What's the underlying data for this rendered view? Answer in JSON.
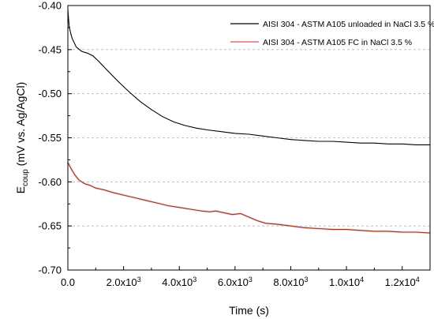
{
  "chart_data": {
    "type": "line",
    "xlabel": "Time (s)",
    "ylabel_main": "E",
    "ylabel_sub": "coup",
    "ylabel_rest": " (mV vs. Ag/AgCl)",
    "xlim": [
      0,
      13000
    ],
    "ylim": [
      -0.7,
      -0.4
    ],
    "grid": "horizontal dashed",
    "legend_position": "top-right",
    "x_ticks": [
      {
        "value": 0,
        "base": "0.0",
        "exp": ""
      },
      {
        "value": 2000,
        "base": "2.0x10",
        "exp": "3"
      },
      {
        "value": 4000,
        "base": "4.0x10",
        "exp": "3"
      },
      {
        "value": 6000,
        "base": "6.0x10",
        "exp": "3"
      },
      {
        "value": 8000,
        "base": "8.0x10",
        "exp": "3"
      },
      {
        "value": 10000,
        "base": "1.0x10",
        "exp": "4"
      },
      {
        "value": 12000,
        "base": "1.2x10",
        "exp": "4"
      }
    ],
    "y_ticks": [
      {
        "value": -0.4,
        "label": "-0.40"
      },
      {
        "value": -0.45,
        "label": "-0.45"
      },
      {
        "value": -0.5,
        "label": "-0.50"
      },
      {
        "value": -0.55,
        "label": "-0.55"
      },
      {
        "value": -0.6,
        "label": "-0.60"
      },
      {
        "value": -0.65,
        "label": "-0.65"
      },
      {
        "value": -0.7,
        "label": "-0.70"
      }
    ],
    "series": [
      {
        "name": "AISI 304 - ASTM A105 unloaded in NaCl 3.5 %",
        "color": "#000000",
        "x": [
          0,
          50,
          150,
          300,
          500,
          700,
          900,
          1100,
          1400,
          1800,
          2200,
          2600,
          3000,
          3400,
          3800,
          4200,
          4600,
          5000,
          5500,
          6000,
          6500,
          7000,
          7500,
          8000,
          8500,
          9000,
          9500,
          10000,
          10500,
          11000,
          11500,
          12000,
          12500,
          13000
        ],
        "y": [
          -0.405,
          -0.425,
          -0.437,
          -0.447,
          -0.452,
          -0.454,
          -0.457,
          -0.463,
          -0.473,
          -0.486,
          -0.498,
          -0.509,
          -0.518,
          -0.526,
          -0.532,
          -0.536,
          -0.539,
          -0.541,
          -0.543,
          -0.545,
          -0.546,
          -0.548,
          -0.55,
          -0.552,
          -0.553,
          -0.554,
          -0.554,
          -0.555,
          -0.556,
          -0.556,
          -0.557,
          -0.557,
          -0.558,
          -0.558
        ]
      },
      {
        "name": "AISI 304 - ASTM A105 FC in NaCl 3.5 %",
        "color": "#8B3A1A",
        "legend_color": "#e05555",
        "x": [
          0,
          100,
          250,
          400,
          600,
          800,
          1000,
          1300,
          1600,
          2000,
          2400,
          2800,
          3200,
          3600,
          4000,
          4400,
          4800,
          5100,
          5300,
          5600,
          5900,
          6200,
          6500,
          6800,
          7100,
          7500,
          8000,
          8500,
          9000,
          9500,
          10000,
          10500,
          11000,
          11500,
          12000,
          12500,
          13000
        ],
        "y": [
          -0.578,
          -0.584,
          -0.592,
          -0.598,
          -0.602,
          -0.604,
          -0.607,
          -0.609,
          -0.612,
          -0.615,
          -0.618,
          -0.621,
          -0.624,
          -0.627,
          -0.629,
          -0.631,
          -0.633,
          -0.634,
          -0.633,
          -0.635,
          -0.637,
          -0.636,
          -0.64,
          -0.644,
          -0.647,
          -0.648,
          -0.65,
          -0.652,
          -0.653,
          -0.654,
          -0.654,
          -0.655,
          -0.656,
          -0.656,
          -0.657,
          -0.657,
          -0.658
        ]
      }
    ]
  }
}
